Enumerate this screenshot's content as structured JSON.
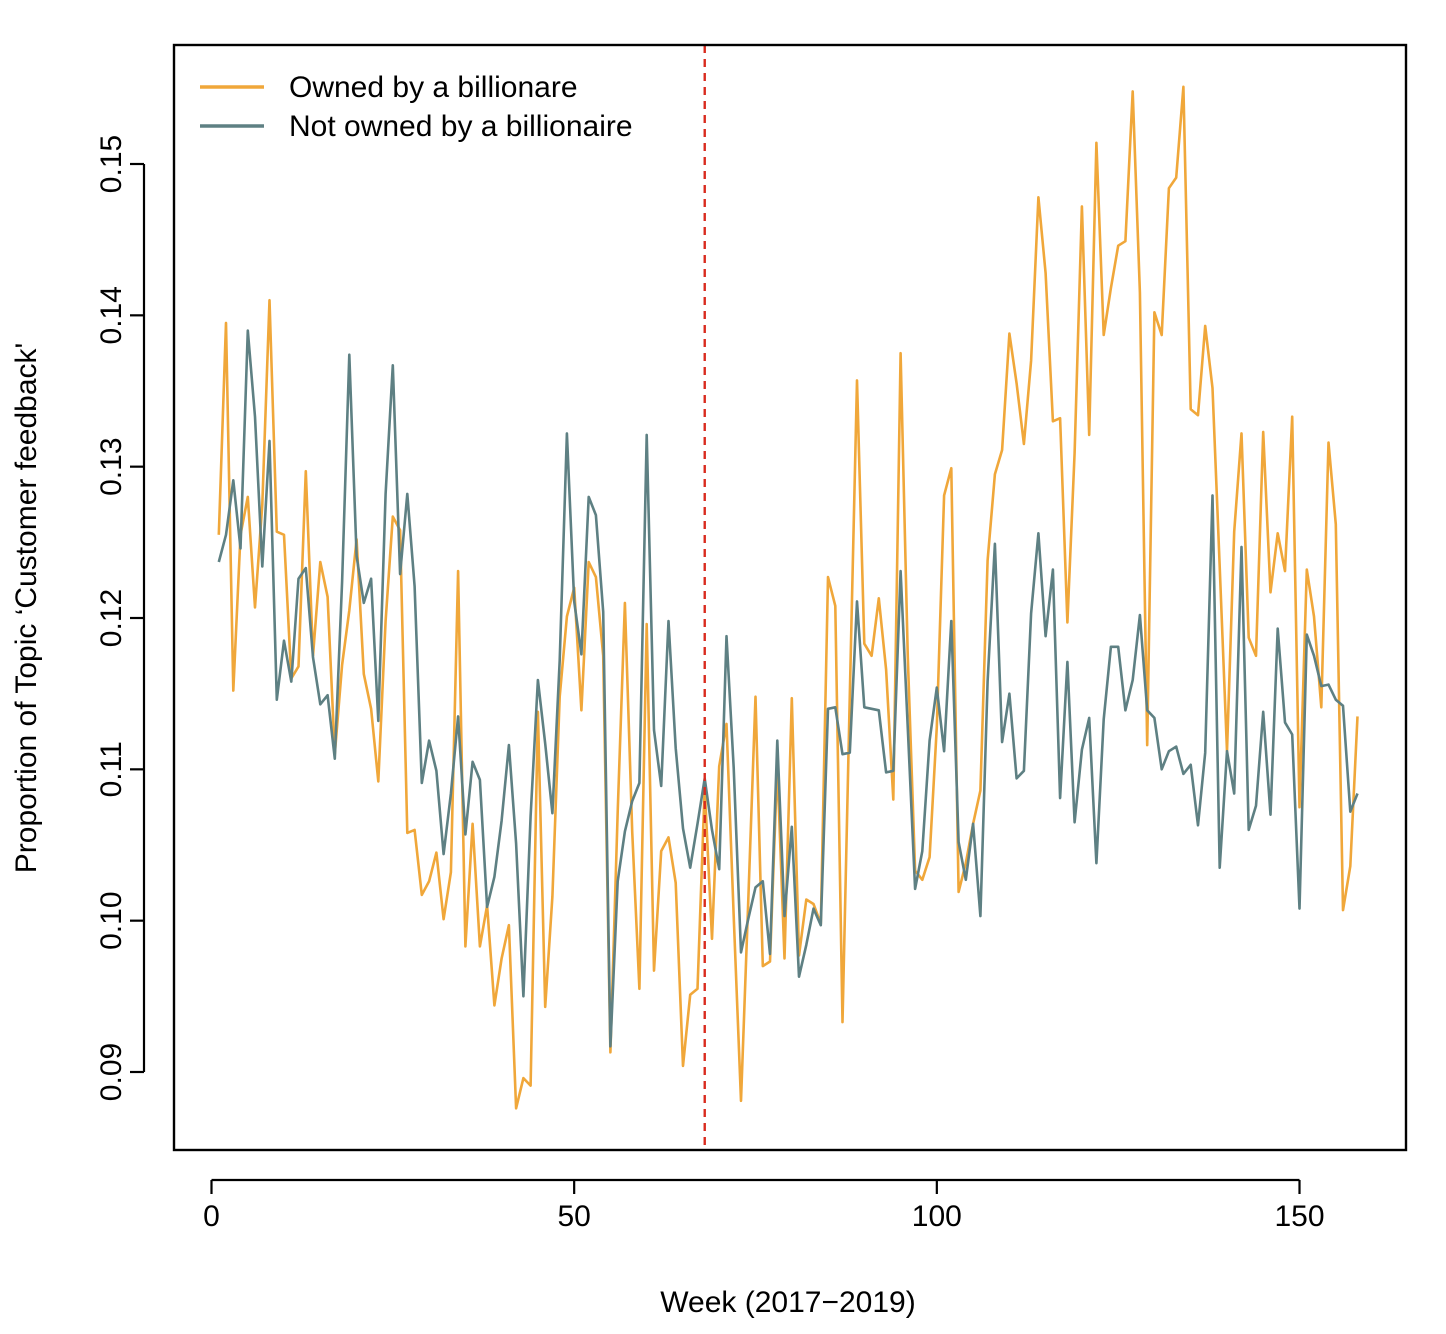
{
  "colors": {
    "owned": "#F0A73A",
    "not_owned": "#5E8083",
    "vline": "#D92B1E",
    "axis": "#000000"
  },
  "chart_data": {
    "type": "line",
    "title": "",
    "xlabel": "Week (2017−2019)",
    "ylabel": "Proportion of Topic ‘Customer feedback'",
    "xlim": [
      -5,
      164
    ],
    "ylim": [
      0.085,
      0.158
    ],
    "x_ticks": [
      0,
      50,
      100,
      150
    ],
    "x_tick_labels": [
      "0",
      "50",
      "100",
      "150"
    ],
    "y_ticks": [
      0.09,
      0.1,
      0.11,
      0.12,
      0.13,
      0.14,
      0.15
    ],
    "y_tick_labels": [
      "0.09",
      "0.10",
      "0.11",
      "0.12",
      "0.13",
      "0.14",
      "0.15"
    ],
    "legend_position": "top-left",
    "vline_x": 68,
    "series": [
      {
        "name": "Owned by a billionare",
        "color": "#F0A73A",
        "start_x": 1,
        "values": [
          0.1255,
          0.1395,
          0.1152,
          0.1255,
          0.128,
          0.1207,
          0.1275,
          0.141,
          0.1257,
          0.1255,
          0.116,
          0.1168,
          0.1297,
          0.1175,
          0.1237,
          0.1214,
          0.111,
          0.1169,
          0.1205,
          0.1252,
          0.1163,
          0.114,
          0.1092,
          0.1198,
          0.1267,
          0.1258,
          0.1058,
          0.106,
          0.1017,
          0.1026,
          0.1045,
          0.1001,
          0.1032,
          0.1231,
          0.0983,
          0.1064,
          0.0983,
          0.101,
          0.0944,
          0.0975,
          0.0997,
          0.0876,
          0.0896,
          0.0891,
          0.1138,
          0.0943,
          0.1016,
          0.1148,
          0.1201,
          0.122,
          0.1139,
          0.1237,
          0.1227,
          0.1175,
          0.0913,
          0.1072,
          0.121,
          0.1059,
          0.0955,
          0.1196,
          0.0967,
          0.1046,
          0.1055,
          0.1025,
          0.0904,
          0.0951,
          0.0955,
          0.1088,
          0.0988,
          0.1102,
          0.113,
          0.1003,
          0.0881,
          0.1012,
          0.1148,
          0.097,
          0.0973,
          0.1103,
          0.0975,
          0.1147,
          0.0977,
          0.1014,
          0.1011,
          0.0998,
          0.1227,
          0.1208,
          0.0933,
          0.1149,
          0.1357,
          0.1183,
          0.1175,
          0.1213,
          0.1166,
          0.108,
          0.1375,
          0.1174,
          0.1033,
          0.1027,
          0.1042,
          0.1128,
          0.1281,
          0.1299,
          0.1019,
          0.1038,
          0.1064,
          0.1086,
          0.1238,
          0.1295,
          0.1311,
          0.1388,
          0.1355,
          0.1315,
          0.137,
          0.1478,
          0.1428,
          0.133,
          0.1332,
          0.1197,
          0.1309,
          0.1472,
          0.1321,
          0.1514,
          0.1387,
          0.1418,
          0.1446,
          0.1449,
          0.1548,
          0.1415,
          0.1116,
          0.1402,
          0.1387,
          0.1484,
          0.1491,
          0.1551,
          0.1338,
          0.1334,
          0.1393,
          0.1352,
          0.1234,
          0.1112,
          0.1257,
          0.1322,
          0.1187,
          0.1175,
          0.1323,
          0.1217,
          0.1256,
          0.1231,
          0.1333,
          0.1075,
          0.1232,
          0.1201,
          0.1141,
          0.1316,
          0.1262,
          0.1007,
          0.1036,
          0.1135
        ]
      },
      {
        "name": "Not owned by a billionaire",
        "color": "#5E8083",
        "start_x": 1,
        "values": [
          0.1237,
          0.1255,
          0.1291,
          0.1246,
          0.139,
          0.1333,
          0.1234,
          0.1317,
          0.1146,
          0.1185,
          0.1158,
          0.1226,
          0.1233,
          0.1174,
          0.1143,
          0.1149,
          0.1107,
          0.1224,
          0.1374,
          0.1241,
          0.121,
          0.1226,
          0.1132,
          0.1282,
          0.1367,
          0.1229,
          0.1282,
          0.1221,
          0.1091,
          0.1119,
          0.1099,
          0.1044,
          0.1084,
          0.1135,
          0.1057,
          0.1105,
          0.1093,
          0.1009,
          0.1029,
          0.1066,
          0.1116,
          0.1051,
          0.095,
          0.1069,
          0.1159,
          0.1117,
          0.1071,
          0.1172,
          0.1322,
          0.1211,
          0.1176,
          0.128,
          0.1268,
          0.1204,
          0.0917,
          0.1026,
          0.1059,
          0.1079,
          0.1091,
          0.1321,
          0.1126,
          0.1089,
          0.1198,
          0.1114,
          0.1061,
          0.1035,
          0.1064,
          0.1094,
          0.106,
          0.1034,
          0.1188,
          0.1101,
          0.0979,
          0.1001,
          0.1022,
          0.1026,
          0.0978,
          0.1119,
          0.1003,
          0.1062,
          0.0963,
          0.0984,
          0.1008,
          0.0997,
          0.114,
          0.1141,
          0.111,
          0.1111,
          0.1211,
          0.1141,
          0.114,
          0.1139,
          0.1098,
          0.1099,
          0.1231,
          0.1127,
          0.1021,
          0.1046,
          0.1119,
          0.1154,
          0.1112,
          0.1198,
          0.1052,
          0.1027,
          0.1064,
          0.1003,
          0.1158,
          0.1249,
          0.1118,
          0.115,
          0.1094,
          0.1099,
          0.1203,
          0.1256,
          0.1188,
          0.1232,
          0.1081,
          0.1171,
          0.1065,
          0.1113,
          0.1134,
          0.1038,
          0.1133,
          0.1181,
          0.1181,
          0.1139,
          0.1159,
          0.1202,
          0.1139,
          0.1134,
          0.11,
          0.1112,
          0.1115,
          0.1097,
          0.1103,
          0.1063,
          0.1111,
          0.1281,
          0.1035,
          0.1112,
          0.1084,
          0.1247,
          0.106,
          0.1076,
          0.1138,
          0.107,
          0.1193,
          0.1131,
          0.1123,
          0.1008,
          0.1189,
          0.1175,
          0.1155,
          0.1156,
          0.1146,
          0.1142,
          0.1072,
          0.1084
        ]
      }
    ]
  }
}
